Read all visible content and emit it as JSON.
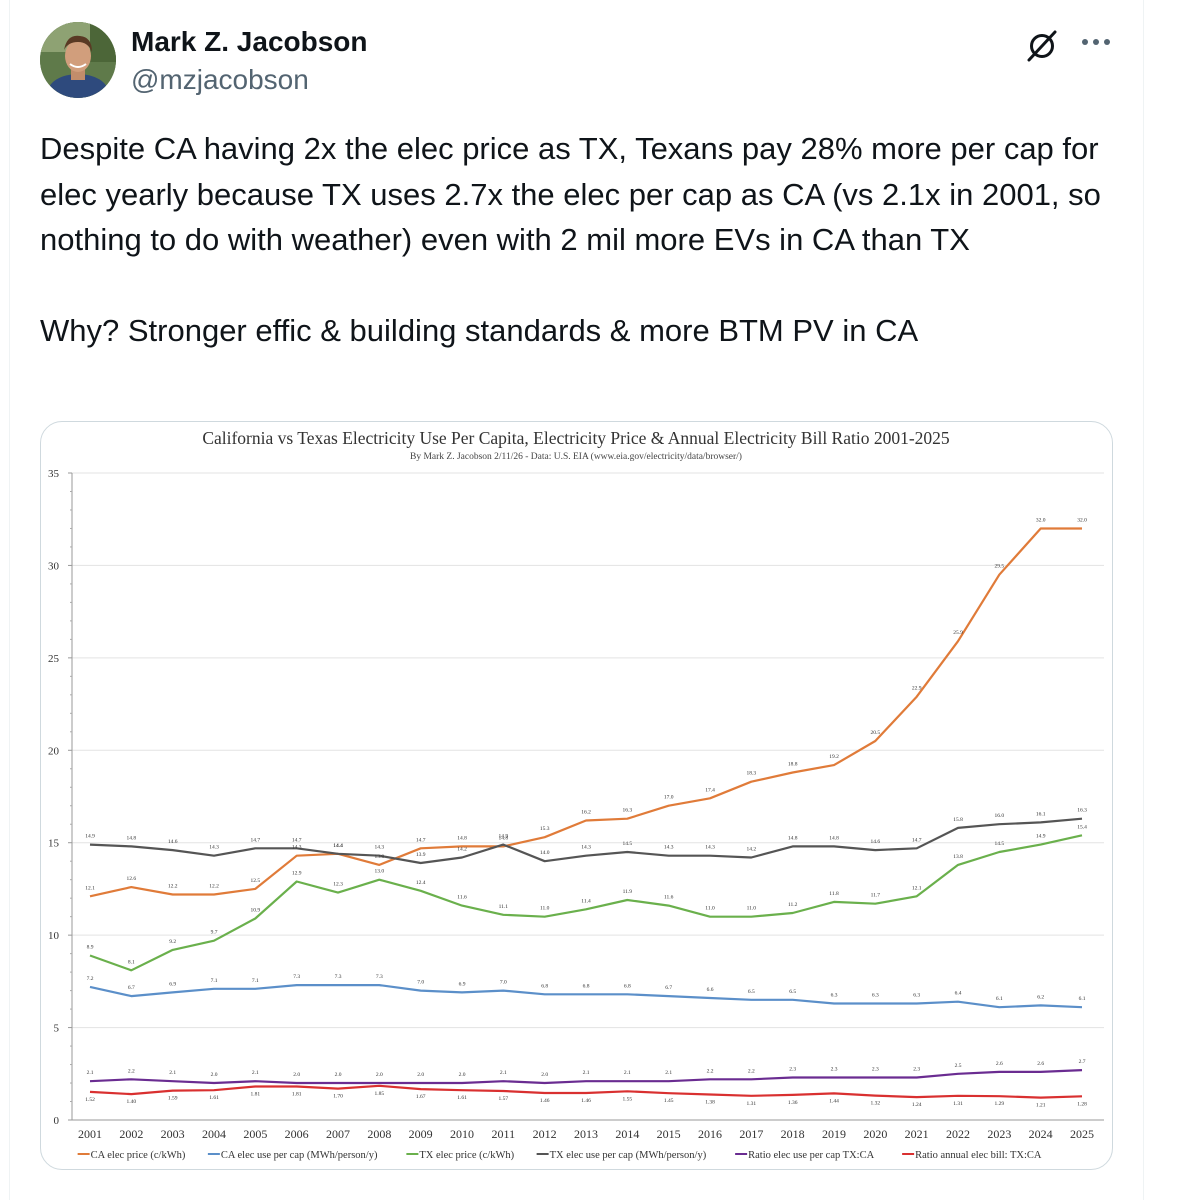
{
  "tweet": {
    "author_name": "Mark Z. Jacobson",
    "author_handle": "@mzjacobson",
    "paragraphs": [
      "Despite CA having 2x the elec price as TX, Texans pay 28% more per cap for elec yearly because TX uses 2.7x the elec per cap as CA (vs 2.1x in 2001, so nothing to do with weather) even with 2 mil more EVs in CA than TX",
      "Why? Stronger effic & building standards & more BTM PV in CA"
    ],
    "icons": {
      "grok": "grok-icon",
      "more": "more-options-icon",
      "avatar": "author-avatar"
    }
  },
  "chart_data": {
    "type": "line",
    "title": "California vs Texas Electricity Use Per Capita, Electricity Price & Annual Electricity Bill Ratio 2001-2025",
    "subtitle": "By Mark Z. Jacobson 2/11/26 - Data: U.S. EIA (www.eia.gov/electricity/data/browser/)",
    "x": [
      "2001",
      "2002",
      "2003",
      "2004",
      "2005",
      "2006",
      "2007",
      "2008",
      "2009",
      "2010",
      "2011",
      "2012",
      "2013",
      "2014",
      "2015",
      "2016",
      "2017",
      "2018",
      "2019",
      "2020",
      "2021",
      "2022",
      "2023",
      "2024",
      "2025"
    ],
    "ylim": [
      0,
      35
    ],
    "yticks": [
      0,
      5,
      10,
      15,
      20,
      25,
      30,
      35
    ],
    "grid": true,
    "legend_position": "bottom",
    "series": [
      {
        "name": "CA elec price (c/kWh)",
        "color": "#e07b39",
        "values": [
          12.1,
          12.6,
          12.2,
          12.2,
          12.5,
          14.3,
          14.4,
          13.8,
          14.7,
          14.8,
          14.8,
          15.3,
          16.2,
          16.3,
          17.0,
          17.4,
          18.3,
          18.8,
          19.2,
          20.5,
          22.9,
          25.9,
          29.5,
          32.0,
          32.0
        ],
        "labels": [
          "12.1",
          "12.6",
          "12.2",
          "12.2",
          "12.5",
          "14.3",
          "14.4",
          "13.8",
          "14.7",
          "14.8",
          "14.8",
          "15.3",
          "16.2",
          "16.3",
          "17.0",
          "17.4",
          "18.3",
          "18.8",
          "19.2",
          "20.5",
          "22.9",
          "25.9",
          "29.5",
          "32.0",
          "32.0"
        ]
      },
      {
        "name": "CA elec use per cap (MWh/person/y)",
        "color": "#5b8fc9",
        "values": [
          7.2,
          6.7,
          6.9,
          7.1,
          7.1,
          7.3,
          7.3,
          7.3,
          7.0,
          6.9,
          7.0,
          6.8,
          6.8,
          6.8,
          6.7,
          6.6,
          6.5,
          6.5,
          6.3,
          6.3,
          6.3,
          6.4,
          6.1,
          6.2,
          6.1
        ],
        "labels": [
          "7.2",
          "6.7",
          "6.9",
          "7.1",
          "7.1",
          "7.3",
          "7.3",
          "7.3",
          "7.0",
          "6.9",
          "7.0",
          "6.8",
          "6.8",
          "6.8",
          "6.7",
          "6.6",
          "6.5",
          "6.5",
          "6.3",
          "6.3",
          "6.3",
          "6.4",
          "6.1",
          "6.2",
          "6.1"
        ]
      },
      {
        "name": "TX elec price (c/kWh)",
        "color": "#6ab04c",
        "values": [
          8.9,
          8.1,
          9.2,
          9.7,
          10.9,
          12.9,
          12.3,
          13.0,
          12.4,
          11.6,
          11.1,
          11.0,
          11.4,
          11.9,
          11.6,
          11.0,
          11.0,
          11.2,
          11.8,
          11.7,
          12.1,
          13.8,
          14.5,
          14.9,
          15.4
        ],
        "labels": [
          "8.9",
          "8.1",
          "9.2",
          "9.7",
          "10.9",
          "12.9",
          "12.3",
          "13.0",
          "12.4",
          "11.6",
          "11.1",
          "11.0",
          "11.4",
          "11.9",
          "11.6",
          "11.0",
          "11.0",
          "11.2",
          "11.8",
          "11.7",
          "12.1",
          "13.8",
          "14.5",
          "14.9",
          "15.4"
        ]
      },
      {
        "name": "TX elec use per cap (MWh/person/y)",
        "color": "#555555",
        "values": [
          14.9,
          14.8,
          14.6,
          14.3,
          14.7,
          14.7,
          14.4,
          14.3,
          13.9,
          14.2,
          14.9,
          14.0,
          14.3,
          14.5,
          14.3,
          14.3,
          14.2,
          14.8,
          14.8,
          14.6,
          14.7,
          15.8,
          16.0,
          16.1,
          16.3
        ],
        "labels": [
          "14.9",
          "14.8",
          "14.6",
          "14.3",
          "14.7",
          "14.7",
          "14.4",
          "14.3",
          "13.9",
          "14.2",
          "14.9",
          "14.0",
          "14.3",
          "14.5",
          "14.3",
          "14.3",
          "14.2",
          "14.8",
          "14.8",
          "14.6",
          "14.7",
          "15.8",
          "16.0",
          "16.1",
          "16.3"
        ]
      },
      {
        "name": "Ratio elec use per cap TX:CA",
        "color": "#6a2c91",
        "values": [
          2.1,
          2.2,
          2.1,
          2.0,
          2.1,
          2.0,
          2.0,
          2.0,
          2.0,
          2.0,
          2.1,
          2.0,
          2.1,
          2.1,
          2.1,
          2.2,
          2.2,
          2.3,
          2.3,
          2.3,
          2.3,
          2.5,
          2.6,
          2.6,
          2.7
        ],
        "labels": [
          "2.1",
          "2.2",
          "2.1",
          "2.0",
          "2.1",
          "2.0",
          "2.0",
          "2.0",
          "2.0",
          "2.0",
          "2.1",
          "2.0",
          "2.1",
          "2.1",
          "2.1",
          "2.2",
          "2.2",
          "2.3",
          "2.3",
          "2.3",
          "2.3",
          "2.5",
          "2.6",
          "2.6",
          "2.7"
        ]
      },
      {
        "name": "Ratio annual elec bill: TX:CA",
        "color": "#d93030",
        "values": [
          1.52,
          1.4,
          1.59,
          1.61,
          1.81,
          1.81,
          1.7,
          1.85,
          1.67,
          1.61,
          1.57,
          1.46,
          1.46,
          1.55,
          1.45,
          1.38,
          1.31,
          1.36,
          1.44,
          1.32,
          1.24,
          1.31,
          1.29,
          1.21,
          1.28
        ],
        "labels": [
          "1.52",
          "1.40",
          "1.59",
          "1.61",
          "1.81",
          "1.81",
          "1.70",
          "1.85",
          "1.67",
          "1.61",
          "1.57",
          "1.46",
          "1.46",
          "1.55",
          "1.45",
          "1.38",
          "1.31",
          "1.36",
          "1.44",
          "1.32",
          "1.24",
          "1.31",
          "1.29",
          "1.21",
          "1.28"
        ]
      }
    ]
  }
}
